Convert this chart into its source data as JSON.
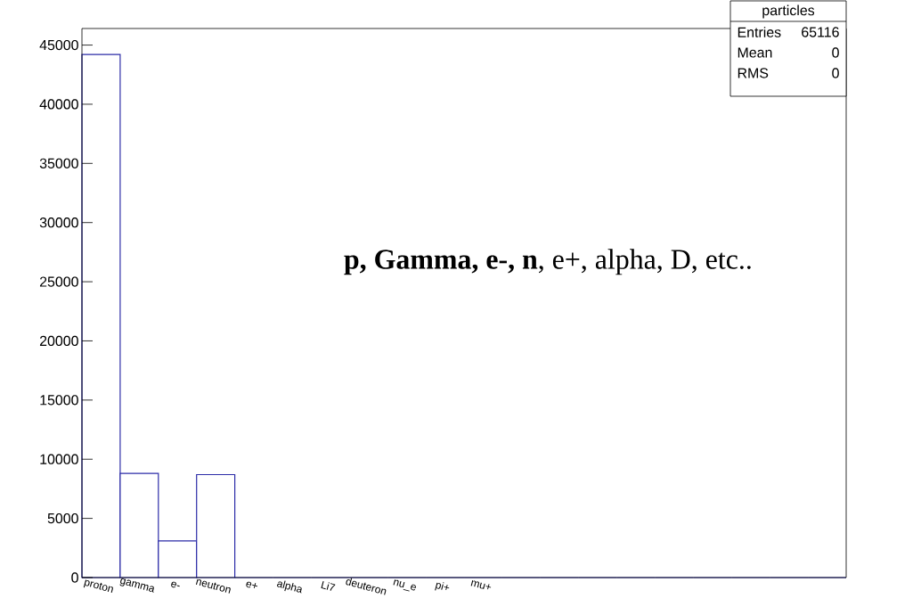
{
  "chart_data": {
    "type": "bar",
    "title": "particles",
    "categories": [
      "proton",
      "gamma",
      "e-",
      "neutron",
      "e+",
      "alpha",
      "Li7",
      "deuteron",
      "nu_e",
      "pi+",
      "mu+",
      null,
      null,
      null,
      null,
      null,
      null,
      null,
      null,
      null
    ],
    "values": [
      44200,
      8800,
      3100,
      8700,
      0,
      0,
      0,
      0,
      0,
      0,
      0,
      0,
      0,
      0,
      0,
      0,
      0,
      0,
      0,
      0
    ],
    "color": "#2d2da8",
    "ylim": [
      0,
      46400
    ],
    "yticks": [
      0,
      5000,
      10000,
      15000,
      20000,
      25000,
      30000,
      35000,
      40000,
      45000
    ],
    "annotations": [
      "Entries",
      "65116",
      "Mean",
      "0",
      "RMS",
      "0",
      "**p, Gamma, e-, n**, e+, alpha, D, etc.."
    ]
  }
}
